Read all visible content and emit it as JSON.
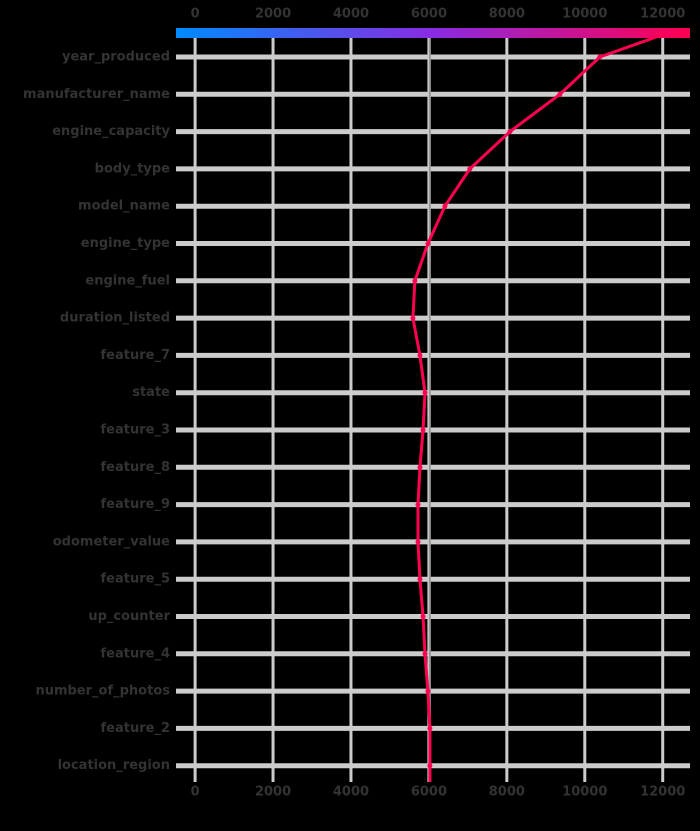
{
  "chart_data": {
    "type": "decision",
    "features": [
      "year_produced",
      "manufacturer_name",
      "engine_capacity",
      "body_type",
      "model_name",
      "engine_type",
      "engine_fuel",
      "duration_listed",
      "feature_7",
      "state",
      "feature_3",
      "feature_8",
      "feature_9",
      "odometer_value",
      "feature_5",
      "up_counter",
      "feature_4",
      "number_of_photos",
      "feature_2",
      "location_region"
    ],
    "values": [
      10385,
      9360,
      8080,
      7050,
      6410,
      5975,
      5640,
      5590,
      5770,
      5900,
      5850,
      5770,
      5720,
      5720,
      5770,
      5850,
      5900,
      5975,
      6025,
      6025
    ],
    "final_value": 12050,
    "base_value": 6025,
    "color": "#ff0051",
    "xlim": [
      -490,
      12700
    ],
    "xticks": [
      0,
      2000,
      4000,
      6000,
      8000,
      10000,
      12000
    ],
    "grid": true
  }
}
